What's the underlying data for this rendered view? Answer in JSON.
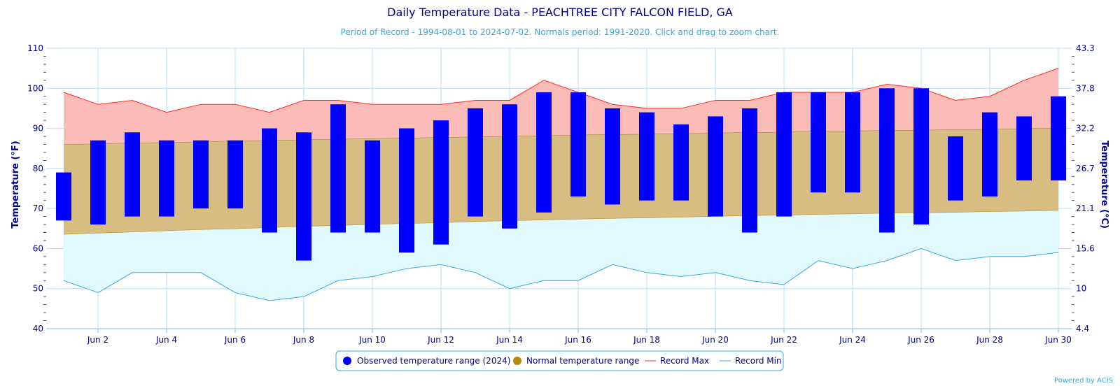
{
  "chart_data": {
    "type": "bar",
    "title": "Daily Temperature Data - PEACHTREE CITY FALCON FIELD, GA",
    "subtitle": "Period of Record - 1994-08-01 to 2024-07-02. Normals period: 1991-2020. Click and drag to zoom chart.",
    "ylabel": "Temperature (°F)",
    "ylabel_right": "Temperature (°C)",
    "ylim": [
      40,
      110
    ],
    "yticks": [
      40,
      50,
      60,
      70,
      80,
      90,
      100,
      110
    ],
    "yticks_right": [
      "4.4",
      "10",
      "15.6",
      "21.1",
      "26.7",
      "32.2",
      "37.8",
      "43.3"
    ],
    "days": [
      1,
      2,
      3,
      4,
      5,
      6,
      7,
      8,
      9,
      10,
      11,
      12,
      13,
      14,
      15,
      16,
      17,
      18,
      19,
      20,
      21,
      22,
      23,
      24,
      25,
      26,
      27,
      28,
      29,
      30
    ],
    "xticks": [
      {
        "day": 2,
        "label": "Jun 2"
      },
      {
        "day": 4,
        "label": "Jun 4"
      },
      {
        "day": 6,
        "label": "Jun 6"
      },
      {
        "day": 8,
        "label": "Jun 8"
      },
      {
        "day": 10,
        "label": "Jun 10"
      },
      {
        "day": 12,
        "label": "Jun 12"
      },
      {
        "day": 14,
        "label": "Jun 14"
      },
      {
        "day": 16,
        "label": "Jun 16"
      },
      {
        "day": 18,
        "label": "Jun 18"
      },
      {
        "day": 20,
        "label": "Jun 20"
      },
      {
        "day": 22,
        "label": "Jun 22"
      },
      {
        "day": 24,
        "label": "Jun 24"
      },
      {
        "day": 26,
        "label": "Jun 26"
      },
      {
        "day": 28,
        "label": "Jun 28"
      },
      {
        "day": 30,
        "label": "Jun 30"
      }
    ],
    "series": [
      {
        "name": "Observed temperature range (2024)",
        "color": "#0000ff",
        "low": [
          67,
          66,
          68,
          68,
          70,
          70,
          64,
          57,
          64,
          64,
          59,
          61,
          68,
          65,
          69,
          73,
          71,
          72,
          72,
          68,
          64,
          68,
          74,
          74,
          64,
          66,
          72,
          73,
          77,
          77
        ],
        "high": [
          79,
          87,
          89,
          87,
          87,
          87,
          90,
          89,
          96,
          87,
          90,
          92,
          95,
          96,
          99,
          99,
          95,
          94,
          91,
          93,
          95,
          99,
          99,
          99,
          100,
          100,
          88,
          94,
          93,
          98
        ]
      },
      {
        "name": "Normal temperature range",
        "color": "#b8860b",
        "low": [
          63.5,
          63.8,
          64.1,
          64.4,
          64.7,
          64.9,
          65.2,
          65.5,
          65.7,
          66.0,
          66.2,
          66.4,
          66.7,
          66.9,
          67.1,
          67.3,
          67.5,
          67.6,
          67.8,
          68.0,
          68.2,
          68.3,
          68.5,
          68.6,
          68.8,
          68.9,
          69.0,
          69.2,
          69.3,
          69.5
        ],
        "high": [
          86.0,
          86.2,
          86.4,
          86.5,
          86.7,
          86.9,
          87.0,
          87.2,
          87.3,
          87.5,
          87.6,
          87.8,
          87.9,
          88.1,
          88.2,
          88.4,
          88.5,
          88.6,
          88.7,
          88.9,
          89.0,
          89.1,
          89.3,
          89.4,
          89.5,
          89.6,
          89.7,
          89.8,
          90.0,
          90.1
        ]
      },
      {
        "name": "Record Max",
        "color": "#ff2a2a",
        "values": [
          99,
          96,
          97,
          94,
          96,
          96,
          94,
          97,
          97,
          96,
          96,
          96,
          97,
          97,
          102,
          99,
          96,
          95,
          95,
          97,
          97,
          99,
          99,
          99,
          101,
          100,
          97,
          98,
          102,
          105
        ]
      },
      {
        "name": "Record Min",
        "color": "#3aa7e0",
        "values": [
          52,
          49,
          54,
          54,
          54,
          49,
          47,
          48,
          52,
          53,
          55,
          56,
          54,
          50,
          52,
          52,
          56,
          54,
          53,
          54,
          52,
          51,
          57,
          55,
          57,
          60,
          57,
          58,
          58,
          59
        ]
      }
    ],
    "legend_position": "bottom-center",
    "grid": true,
    "credit": "Powered by ACIS"
  }
}
